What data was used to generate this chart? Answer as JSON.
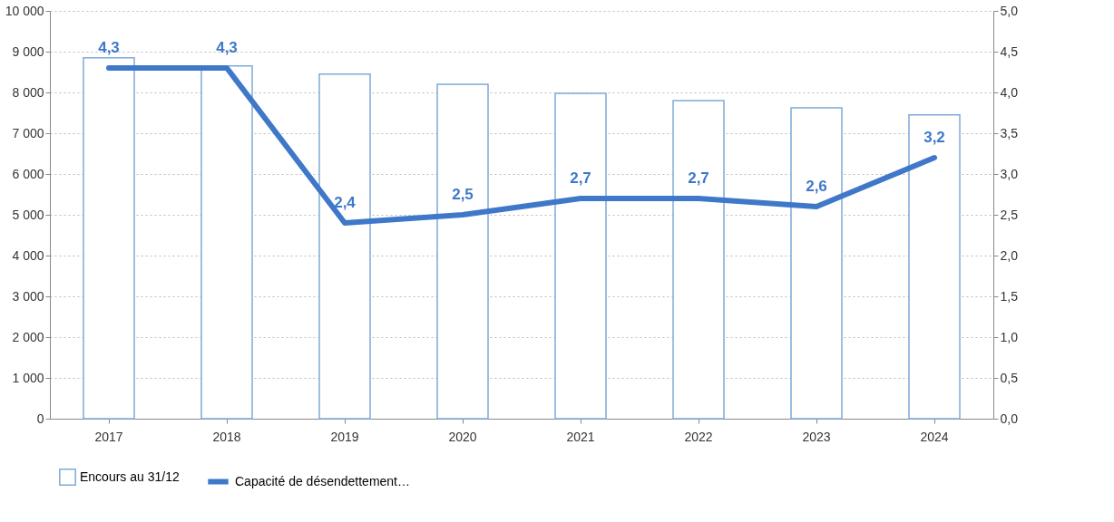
{
  "chart_data": {
    "type": "bar",
    "categories": [
      "2017",
      "2018",
      "2019",
      "2020",
      "2021",
      "2022",
      "2023",
      "2024"
    ],
    "series": [
      {
        "name": "Encours au 31/12",
        "color": "#7fa9d9",
        "values": [
          8850,
          8650,
          8450,
          8200,
          7980,
          7800,
          7620,
          7450
        ]
      },
      {
        "name": "Capacité de désendettement…",
        "type": "line",
        "axis": "y2",
        "color": "#3f78c9",
        "values": [
          4.3,
          4.3,
          2.4,
          2.5,
          2.7,
          2.7,
          2.6,
          3.2
        ],
        "value_labels": [
          "4,3",
          "4,3",
          "2,4",
          "2,5",
          "2,7",
          "2,7",
          "2,6",
          "3,2"
        ]
      }
    ],
    "ylim": [
      0,
      10000
    ],
    "yticks": [
      0,
      {
        "value": 1000,
        "label": "1 000"
      },
      {
        "value": 2000,
        "label": "2 000"
      },
      {
        "value": 3000,
        "label": "3 000"
      },
      {
        "value": 4000,
        "label": "4 000"
      },
      {
        "value": 5000,
        "label": "5 000"
      },
      {
        "value": 6000,
        "label": "6 000"
      },
      {
        "value": 7000,
        "label": "7 000"
      },
      {
        "value": 8000,
        "label": "8 000"
      },
      {
        "value": 9000,
        "label": "9 000"
      },
      {
        "value": 10000,
        "label": "10 000"
      }
    ],
    "y2lim": [
      0,
      5
    ],
    "y2ticks": [
      {
        "value": 0,
        "label": "0,0"
      },
      {
        "value": 0.5,
        "label": "0,5"
      },
      {
        "value": 1,
        "label": "1,0"
      },
      {
        "value": 1.5,
        "label": "1,5"
      },
      {
        "value": 2,
        "label": "2,0"
      },
      {
        "value": 2.5,
        "label": "2,5"
      },
      {
        "value": 3,
        "label": "3,0"
      },
      {
        "value": 3.5,
        "label": "3,5"
      },
      {
        "value": 4,
        "label": "4,0"
      },
      {
        "value": 4.5,
        "label": "4,5"
      },
      {
        "value": 5,
        "label": "5,0"
      }
    ],
    "grid": "y",
    "legend": "bottom",
    "line_style": "solid",
    "marker": "none"
  }
}
